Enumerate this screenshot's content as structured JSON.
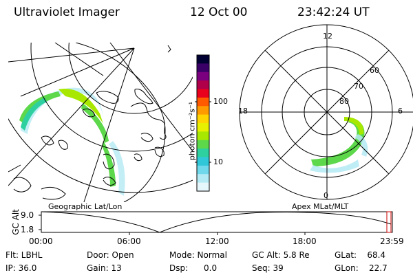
{
  "header": {
    "instrument": "Ultraviolet Imager",
    "date": "12 Oct 00",
    "time": "23:42:24 UT"
  },
  "left_map": {
    "label": "Geographic Lat/Lon"
  },
  "right_map": {
    "label": "Apex MLat/MLT",
    "mlt_labels": [
      "12",
      "18",
      "6",
      "0"
    ],
    "lat_labels": [
      "60",
      "70",
      "80"
    ]
  },
  "colorbar": {
    "unit_label": "photon cm⁻²s⁻¹",
    "ticks": [
      "100",
      "10"
    ],
    "colors": [
      "#000033",
      "#3a0068",
      "#7a0080",
      "#b0004a",
      "#e8001c",
      "#ff5a00",
      "#ff9a00",
      "#ffd400",
      "#e6f000",
      "#a8e800",
      "#5cd84a",
      "#2ed0a0",
      "#30c8d8",
      "#6fd8ea",
      "#b4eaf4",
      "#e6f7fb"
    ]
  },
  "orbit": {
    "ylabel": "GC Alt",
    "y_ticks": [
      "9.0",
      "1.8"
    ],
    "x_ticks": [
      "00:00",
      "06:00",
      "12:00",
      "18:00",
      "23:59"
    ],
    "marker_color": "#cc0000"
  },
  "info": {
    "flt": "Flt: LBHL",
    "ip": "IP: 36.0",
    "door": "Door: Open",
    "gain": "Gain: 13",
    "mode": "Mode: Normal",
    "dsp": "Dsp:      0.0",
    "gcalt": "GC Alt: 5.8 Re",
    "seq": "Seq: 39",
    "glat": "GLat:    68.4",
    "glon": "GLon:    22.7"
  }
}
